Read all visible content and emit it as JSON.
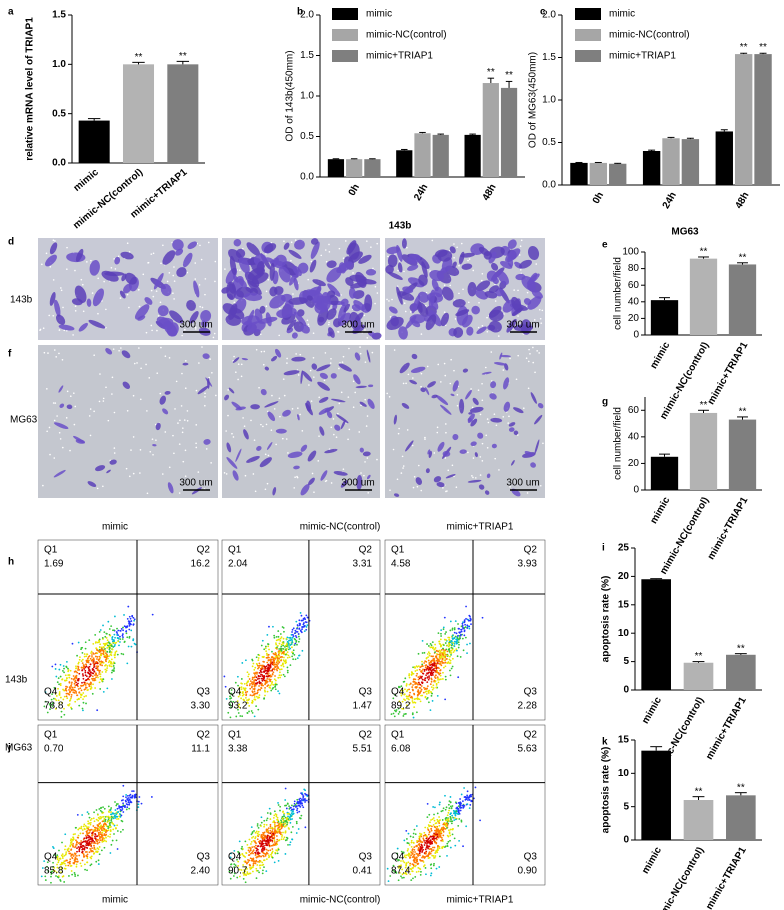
{
  "panel_labels": [
    "a",
    "b",
    "c",
    "d",
    "e",
    "f",
    "g",
    "h",
    "i",
    "j",
    "k"
  ],
  "image_titles": [
    "143b",
    "MG63"
  ],
  "image_rows": [
    "143b",
    "MG63"
  ],
  "scale_bar": "300 um",
  "flow": {
    "headers": [
      "mimic",
      "mimic-NC(control)",
      "mimic+TRIAP1"
    ],
    "quadrants": [
      "Q1",
      "Q2",
      "Q3",
      "Q4"
    ],
    "rows": [
      {
        "label": "143b",
        "plots": [
          {
            "Q1": "1.69",
            "Q2": "16.2",
            "Q3": "3.30",
            "Q4": "78.8"
          },
          {
            "Q1": "2.04",
            "Q2": "3.31",
            "Q3": "1.47",
            "Q4": "93.2"
          },
          {
            "Q1": "4.58",
            "Q2": "3.93",
            "Q3": "2.28",
            "Q4": "89.2"
          }
        ]
      },
      {
        "label": "MG63",
        "plots": [
          {
            "Q1": "0.70",
            "Q2": "11.1",
            "Q3": "2.40",
            "Q4": "85.8"
          },
          {
            "Q1": "3.38",
            "Q2": "5.51",
            "Q3": "0.41",
            "Q4": "90.7"
          },
          {
            "Q1": "6.08",
            "Q2": "5.63",
            "Q3": "0.90",
            "Q4": "87.4"
          }
        ]
      }
    ]
  },
  "chart_data": [
    {
      "type": "bar",
      "y_label": "relative mRNA level of TRIAP1",
      "categories": [
        "mimic",
        "mimic-NC(control)",
        "mimic+TRIAP1"
      ],
      "values": [
        0.43,
        1.0,
        1.0
      ],
      "errors": [
        0.02,
        0.02,
        0.03
      ],
      "colors": [
        "#000000",
        "#b3b3b3",
        "#7f7f7f"
      ],
      "annotations": [
        {
          "index": 1,
          "text": "**"
        },
        {
          "index": 2,
          "text": "**"
        }
      ],
      "ylim": [
        0,
        1.5
      ],
      "yticks": [
        {
          "value": 0,
          "label": "0.0"
        },
        0.5,
        {
          "value": 1,
          "label": "1.0"
        },
        1.5
      ]
    },
    {
      "type": "grouped_bar",
      "y_label": "OD of 143b(450mm)",
      "categories": [
        "0h",
        "24h",
        "48h"
      ],
      "series": [
        {
          "name": "mimic",
          "color": "#000000",
          "values": [
            0.22,
            0.33,
            0.52
          ],
          "errors": [
            0.005,
            0.01,
            0.01
          ]
        },
        {
          "name": "mimic-NC(control)",
          "color": "#a6a6a6",
          "values": [
            0.22,
            0.54,
            1.16
          ],
          "errors": [
            0.005,
            0.01,
            0.06
          ]
        },
        {
          "name": "mimic+TRIAP1",
          "color": "#7f7f7f",
          "values": [
            0.22,
            0.52,
            1.1
          ],
          "errors": [
            0.005,
            0.01,
            0.08
          ]
        }
      ],
      "annotations": [
        {
          "series": 1,
          "index": 2,
          "text": "**"
        },
        {
          "series": 2,
          "index": 2,
          "text": "**"
        }
      ],
      "ylim": [
        0,
        2
      ],
      "yticks": [
        {
          "value": 0,
          "label": "0.0"
        },
        0.5,
        {
          "value": 1,
          "label": "1.0"
        },
        1.5,
        {
          "value": 2,
          "label": "2.0"
        }
      ]
    },
    {
      "type": "grouped_bar",
      "y_label": "OD of MG63(450mm)",
      "categories": [
        "0h",
        "24h",
        "48h"
      ],
      "series": [
        {
          "name": "mimic",
          "color": "#000000",
          "values": [
            0.26,
            0.4,
            0.63
          ],
          "errors": [
            0.005,
            0.01,
            0.02
          ]
        },
        {
          "name": "mimic-NC(control)",
          "color": "#a6a6a6",
          "values": [
            0.26,
            0.55,
            1.54
          ],
          "errors": [
            0.005,
            0.01,
            0.01
          ]
        },
        {
          "name": "mimic+TRIAP1",
          "color": "#7f7f7f",
          "values": [
            0.25,
            0.54,
            1.54
          ],
          "errors": [
            0.005,
            0.01,
            0.01
          ]
        }
      ],
      "annotations": [
        {
          "series": 1,
          "index": 2,
          "text": "**"
        },
        {
          "series": 2,
          "index": 2,
          "text": "**"
        }
      ],
      "ylim": [
        0,
        2
      ],
      "yticks": [
        {
          "value": 0,
          "label": "0.0"
        },
        0.5,
        {
          "value": 1,
          "label": "1.0"
        },
        1.5,
        {
          "value": 2,
          "label": "2.0"
        }
      ]
    },
    {
      "type": "bar",
      "y_label": "cell number/field",
      "categories": [
        "mimic",
        "mimic-NC(control)",
        "mimic+TRIAP1"
      ],
      "values": [
        42,
        92,
        85
      ],
      "errors": [
        3,
        2,
        2
      ],
      "colors": [
        "#000000",
        "#b3b3b3",
        "#7f7f7f"
      ],
      "annotations": [
        {
          "index": 1,
          "text": "**"
        },
        {
          "index": 2,
          "text": "**"
        }
      ],
      "ylim": [
        0,
        100
      ],
      "yticks": [
        0,
        20,
        40,
        60,
        80,
        100
      ]
    },
    {
      "type": "bar",
      "y_label": "cell number/field",
      "categories": [
        "mimic",
        "mimic-NC(control)",
        "mimic+TRIAP1"
      ],
      "values": [
        25,
        58,
        53
      ],
      "errors": [
        2,
        2,
        2
      ],
      "colors": [
        "#000000",
        "#b3b3b3",
        "#7f7f7f"
      ],
      "annotations": [
        {
          "index": 1,
          "text": "**"
        },
        {
          "index": 2,
          "text": "**"
        }
      ],
      "ylim": [
        0,
        70
      ],
      "yticks": [
        0,
        20,
        40,
        60
      ]
    },
    {
      "type": "bar",
      "y_label": "apoptosis rate (%)",
      "categories": [
        "mimic",
        "mimic-NC(control)",
        "mimic+TRIAP1"
      ],
      "values": [
        19.5,
        4.8,
        6.2
      ],
      "errors": [
        0.1,
        0.2,
        0.2
      ],
      "colors": [
        "#000000",
        "#b3b3b3",
        "#7f7f7f"
      ],
      "annotations": [
        {
          "index": 1,
          "text": "**"
        },
        {
          "index": 2,
          "text": "**"
        }
      ],
      "ylim": [
        0,
        25
      ],
      "yticks": [
        0,
        5,
        10,
        15,
        20,
        25
      ]
    },
    {
      "type": "bar",
      "y_label": "apoptosis rate (%)",
      "categories": [
        "mimic",
        "mimic-NC(control)",
        "mimic+TRIAP1"
      ],
      "values": [
        13.4,
        6.0,
        6.7
      ],
      "errors": [
        0.6,
        0.5,
        0.4
      ],
      "colors": [
        "#000000",
        "#b3b3b3",
        "#7f7f7f"
      ],
      "annotations": [
        {
          "index": 1,
          "text": "**"
        },
        {
          "index": 2,
          "text": "**"
        }
      ],
      "ylim": [
        0,
        15
      ],
      "yticks": [
        0,
        5,
        10,
        15
      ]
    }
  ]
}
